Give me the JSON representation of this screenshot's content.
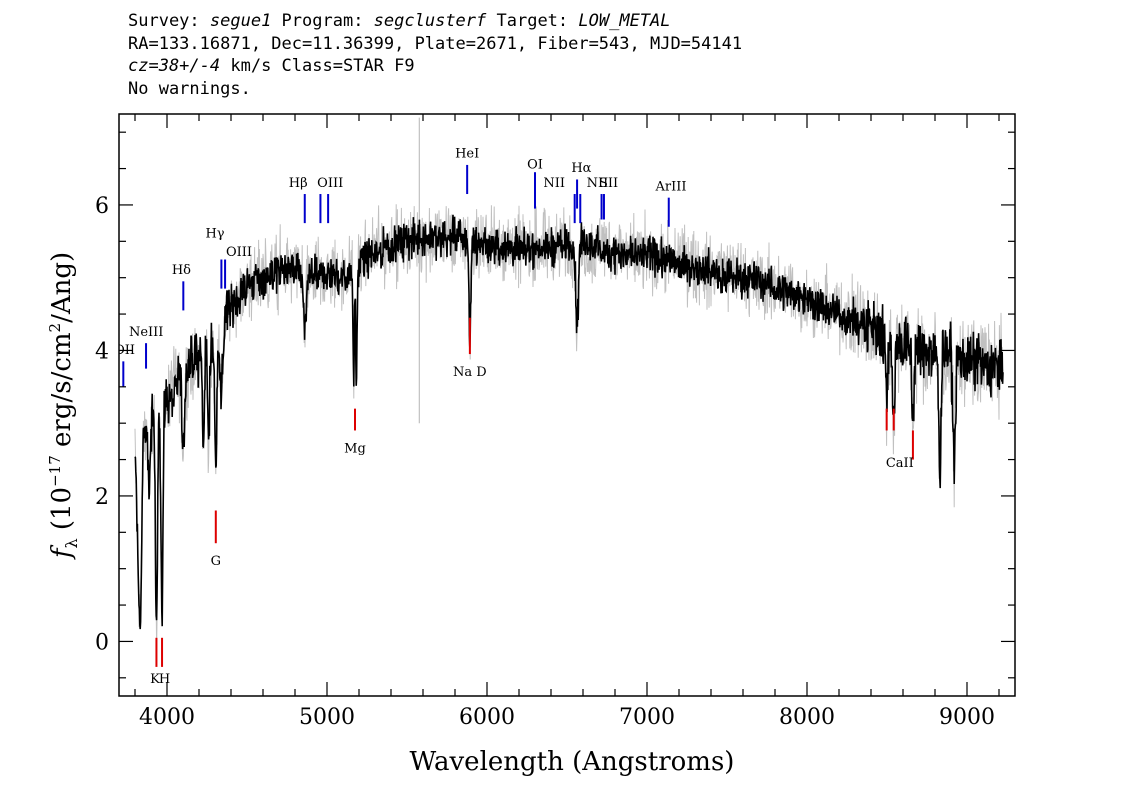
{
  "header": {
    "line1": [
      {
        "text": "Survey: ",
        "italic": false
      },
      {
        "text": "segue1",
        "italic": true
      },
      {
        "text": " Program: ",
        "italic": false
      },
      {
        "text": "segclusterf",
        "italic": true
      },
      {
        "text": " Target: ",
        "italic": false
      },
      {
        "text": "LOW_METAL",
        "italic": true
      }
    ],
    "line2": "RA=133.16871, Dec=11.36399, Plate=2671, Fiber=543, MJD=54141",
    "line3": [
      {
        "text": "cz=38+/-4",
        "italic": true
      },
      {
        "text": " km/s Class=STAR F9",
        "italic": false
      }
    ],
    "line4": "No warnings."
  },
  "chart_data": {
    "type": "line",
    "xlabel": "Wavelength (Angstroms)",
    "ylabel_parts": [
      "f",
      "λ",
      " (10",
      "−17",
      " erg/s/cm",
      "2",
      "/Ang)"
    ],
    "xlim": [
      3700,
      9300
    ],
    "ylim": [
      -0.75,
      7.25
    ],
    "xticks": [
      4000,
      5000,
      6000,
      7000,
      8000,
      9000
    ],
    "yticks": [
      0,
      2,
      4,
      6
    ],
    "colors": {
      "flux": "#000000",
      "error_band": "#c0c0c0",
      "emission": "#0000cc",
      "absorption": "#dd0000"
    },
    "continuum": [
      [
        3800,
        2.6
      ],
      [
        3900,
        3.1
      ],
      [
        4000,
        3.3
      ],
      [
        4100,
        3.7
      ],
      [
        4200,
        3.9
      ],
      [
        4300,
        4.2
      ],
      [
        4400,
        4.6
      ],
      [
        4500,
        4.9
      ],
      [
        4600,
        5.0
      ],
      [
        4700,
        5.1
      ],
      [
        4800,
        5.1
      ],
      [
        4900,
        5.0
      ],
      [
        5000,
        5.05
      ],
      [
        5100,
        5.0
      ],
      [
        5200,
        5.2
      ],
      [
        5300,
        5.35
      ],
      [
        5400,
        5.45
      ],
      [
        5500,
        5.5
      ],
      [
        5600,
        5.55
      ],
      [
        5700,
        5.55
      ],
      [
        5800,
        5.55
      ],
      [
        5900,
        5.5
      ],
      [
        6000,
        5.45
      ],
      [
        6100,
        5.42
      ],
      [
        6200,
        5.4
      ],
      [
        6300,
        5.4
      ],
      [
        6400,
        5.42
      ],
      [
        6500,
        5.45
      ],
      [
        6600,
        5.45
      ],
      [
        6700,
        5.4
      ],
      [
        6800,
        5.35
      ],
      [
        6900,
        5.3
      ],
      [
        7000,
        5.3
      ],
      [
        7100,
        5.25
      ],
      [
        7200,
        5.2
      ],
      [
        7300,
        5.15
      ],
      [
        7400,
        5.1
      ],
      [
        7500,
        5.05
      ],
      [
        7600,
        5.0
      ],
      [
        7700,
        4.95
      ],
      [
        7800,
        4.85
      ],
      [
        7900,
        4.8
      ],
      [
        8000,
        4.7
      ],
      [
        8100,
        4.6
      ],
      [
        8200,
        4.5
      ],
      [
        8300,
        4.4
      ],
      [
        8400,
        4.3
      ],
      [
        8500,
        4.2
      ],
      [
        8600,
        4.1
      ],
      [
        8700,
        4.0
      ],
      [
        8800,
        3.95
      ],
      [
        8900,
        3.9
      ],
      [
        9000,
        3.85
      ],
      [
        9100,
        3.8
      ],
      [
        9200,
        3.75
      ]
    ],
    "absorption_features": [
      {
        "x": 3820,
        "depth": 1.5,
        "width": 12
      },
      {
        "x": 3835,
        "depth": 2.2,
        "width": 10
      },
      {
        "x": 3889,
        "depth": 1.0,
        "width": 10
      },
      {
        "x": 3934,
        "depth": 3.2,
        "width": 9
      },
      {
        "x": 3969,
        "depth": 2.8,
        "width": 9
      },
      {
        "x": 4101,
        "depth": 1.0,
        "width": 12
      },
      {
        "x": 4227,
        "depth": 1.3,
        "width": 8
      },
      {
        "x": 4260,
        "depth": 1.5,
        "width": 8
      },
      {
        "x": 4305,
        "depth": 1.9,
        "width": 9
      },
      {
        "x": 4340,
        "depth": 1.0,
        "width": 12
      },
      {
        "x": 4861,
        "depth": 0.8,
        "width": 12
      },
      {
        "x": 5167,
        "depth": 1.5,
        "width": 6
      },
      {
        "x": 5184,
        "depth": 1.6,
        "width": 6
      },
      {
        "x": 5893,
        "depth": 1.4,
        "width": 8
      },
      {
        "x": 6563,
        "depth": 1.1,
        "width": 12
      },
      {
        "x": 8498,
        "depth": 0.8,
        "width": 10
      },
      {
        "x": 8542,
        "depth": 1.2,
        "width": 10
      },
      {
        "x": 8662,
        "depth": 1.0,
        "width": 10
      },
      {
        "x": 8830,
        "depth": 1.6,
        "width": 10
      },
      {
        "x": 8920,
        "depth": 1.4,
        "width": 10
      }
    ],
    "emission_lines": [
      {
        "label": "NeIII",
        "x": 3869,
        "y0": 3.75,
        "y1": 4.1
      },
      {
        "label": "OII",
        "x": 3727,
        "y0": 3.5,
        "y1": 3.85
      },
      {
        "label": "Hδ",
        "x": 4102,
        "y0": 4.55,
        "y1": 4.95
      },
      {
        "label": "Hγ",
        "x": 4340,
        "y0": 4.85,
        "y1": 5.25
      },
      {
        "label": "OIII",
        "x": 4363,
        "y0": 4.85,
        "y1": 5.25
      },
      {
        "label": "Hβ",
        "x": 4861,
        "y0": 5.75,
        "y1": 6.15
      },
      {
        "label": "OIII",
        "x": 4959,
        "y0": 5.75,
        "y1": 6.15
      },
      {
        "label": "OIII",
        "x": 5007,
        "y0": 5.75,
        "y1": 6.15
      },
      {
        "label": "HeI",
        "x": 5876,
        "y0": 6.15,
        "y1": 6.55
      },
      {
        "label": "OI",
        "x": 6300,
        "y0": 5.95,
        "y1": 6.45
      },
      {
        "label": "NII",
        "x": 6548,
        "y0": 5.75,
        "y1": 6.15
      },
      {
        "label": "Hα",
        "x": 6563,
        "y0": 5.95,
        "y1": 6.35
      },
      {
        "label": "NII",
        "x": 6583,
        "y0": 5.75,
        "y1": 6.15
      },
      {
        "label": "SII",
        "x": 6716,
        "y0": 5.8,
        "y1": 6.15
      },
      {
        "label": "SII",
        "x": 6731,
        "y0": 5.8,
        "y1": 6.15
      },
      {
        "label": "ArIII",
        "x": 7136,
        "y0": 5.7,
        "y1": 6.1
      }
    ],
    "absorption_marks": [
      {
        "label": "K",
        "x": 3934,
        "y0": -0.35,
        "y1": 0.05
      },
      {
        "label": "H",
        "x": 3969,
        "y0": -0.35,
        "y1": 0.05
      },
      {
        "label": "G",
        "x": 4305,
        "y0": 1.35,
        "y1": 1.8
      },
      {
        "label": "Mg",
        "x": 5175,
        "y0": 2.9,
        "y1": 3.2
      },
      {
        "label": "Na D",
        "x": 5893,
        "y0": 3.95,
        "y1": 4.45
      },
      {
        "label": "CaII",
        "x": 8498,
        "y0": 2.9,
        "y1": 3.2
      },
      {
        "label": "CaII",
        "x": 8542,
        "y0": 2.9,
        "y1": 3.2
      },
      {
        "label": "CaII",
        "x": 8662,
        "y0": 2.5,
        "y1": 2.9
      }
    ],
    "emission_labels": [
      {
        "text": "NeIII",
        "x": 3870,
        "y": 4.2
      },
      {
        "text": "OII",
        "x": 3735,
        "y": 3.95
      },
      {
        "text": "Hδ",
        "x": 4090,
        "y": 5.05
      },
      {
        "text": "Hγ",
        "x": 4300,
        "y": 5.55
      },
      {
        "text": "OIII",
        "x": 4450,
        "y": 5.3
      },
      {
        "text": "Hβ",
        "x": 4820,
        "y": 6.25
      },
      {
        "text": "OIII",
        "x": 5020,
        "y": 6.25
      },
      {
        "text": "HeI",
        "x": 5876,
        "y": 6.65
      },
      {
        "text": "OI",
        "x": 6300,
        "y": 6.5
      },
      {
        "text": "NII",
        "x": 6420,
        "y": 6.25
      },
      {
        "text": "Hα",
        "x": 6590,
        "y": 6.45
      },
      {
        "text": "NII",
        "x": 6690,
        "y": 6.25
      },
      {
        "text": "SII",
        "x": 6760,
        "y": 6.25
      },
      {
        "text": "ArIII",
        "x": 7150,
        "y": 6.2
      }
    ],
    "absorption_labels": [
      {
        "text": "K",
        "x": 3925,
        "y": -0.57
      },
      {
        "text": "H",
        "x": 3985,
        "y": -0.57
      },
      {
        "text": "G",
        "x": 4305,
        "y": 1.05
      },
      {
        "text": "Mg",
        "x": 5175,
        "y": 2.6
      },
      {
        "text": "Na D",
        "x": 5893,
        "y": 3.65
      },
      {
        "text": "CaII",
        "x": 8580,
        "y": 2.4
      }
    ],
    "noise_amplitude": 0.18,
    "error_amplitude": 0.35,
    "spikes": [
      {
        "x": 5577,
        "y0": 3.0,
        "y1": 7.2
      },
      {
        "x": 6300,
        "y0": 5.0,
        "y1": 6.0
      }
    ]
  }
}
